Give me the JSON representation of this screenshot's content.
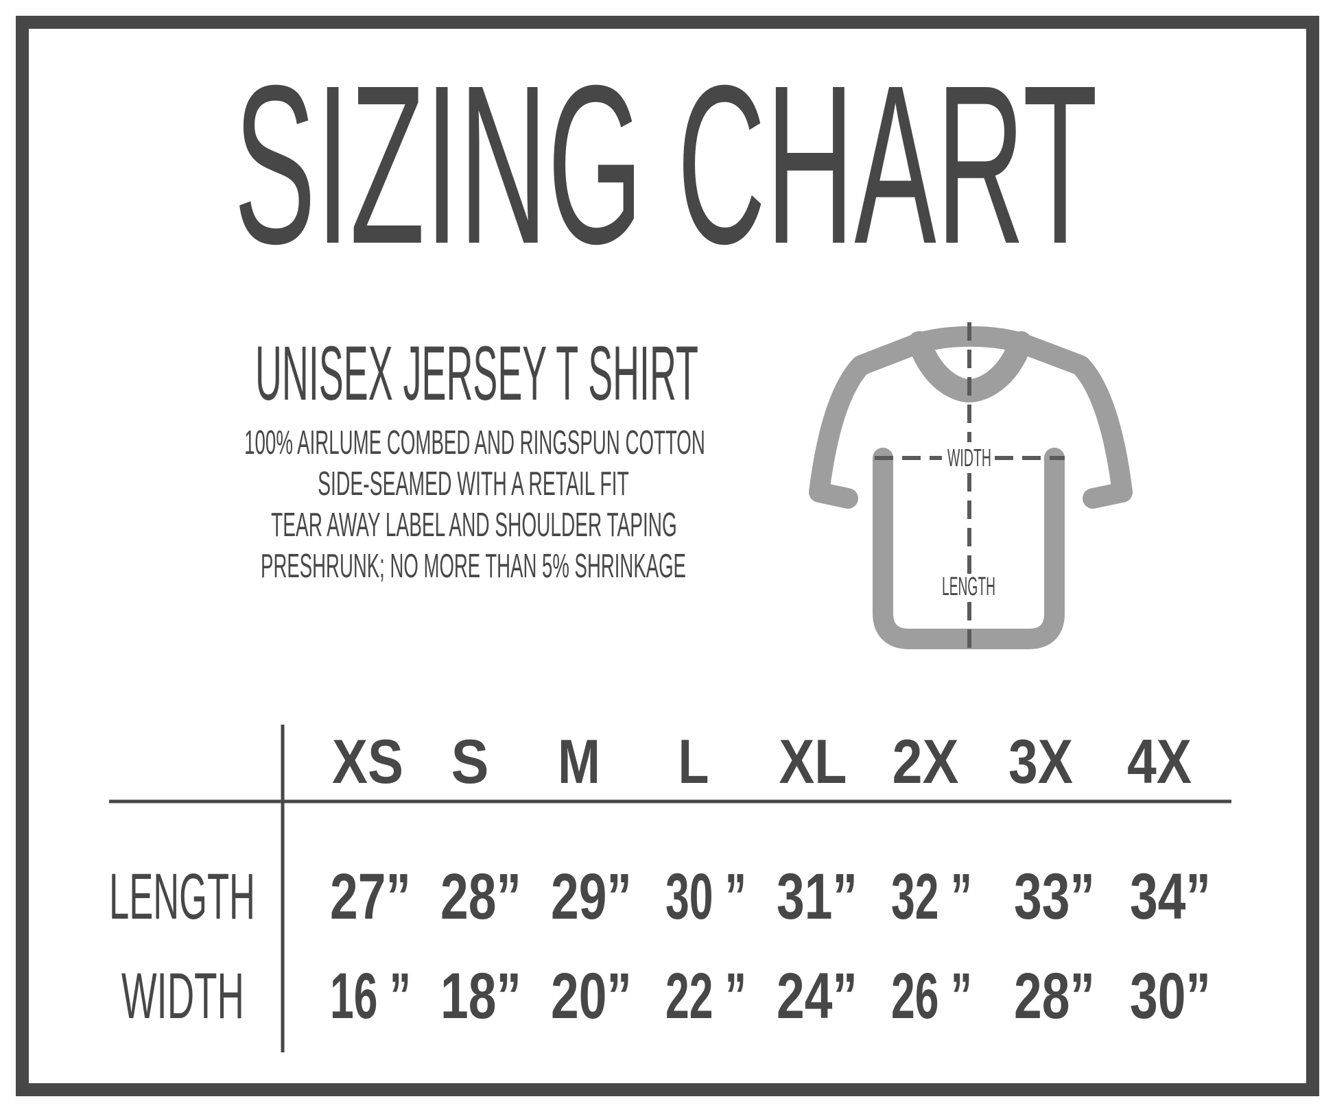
{
  "title": "SIZING CHART",
  "product": {
    "name": "UNISEX JERSEY T SHIRT",
    "features": [
      "100% AIRLUME COMBED AND RINGSPUN COTTON",
      "SIDE-SEAMED WITH A RETAIL FIT",
      "TEAR AWAY LABEL AND SHOULDER TAPING",
      "PRESHRUNK; NO MORE THAN 5% SHRINKAGE"
    ]
  },
  "diagram": {
    "icon": "t-shirt-icon",
    "width_label": "WIDTH",
    "length_label": "LENGTH"
  },
  "table": {
    "sizes": [
      "XS",
      "S",
      "M",
      "L",
      "XL",
      "2X",
      "3X",
      "4X"
    ],
    "rows": [
      {
        "label": "LENGTH",
        "values": [
          "27”",
          "28”",
          "29”",
          "30 ”",
          "31”",
          "32 ”",
          "33”",
          "34”"
        ]
      },
      {
        "label": "WIDTH",
        "values": [
          "16 ”",
          "18”",
          "20”",
          "22 ”",
          "24”",
          "26 ”",
          "28”",
          "30”"
        ]
      }
    ]
  },
  "colors": {
    "text": "#474747",
    "shirt": "#9e9e9e",
    "dash": "#5a5a5a",
    "background": "#ffffff"
  }
}
